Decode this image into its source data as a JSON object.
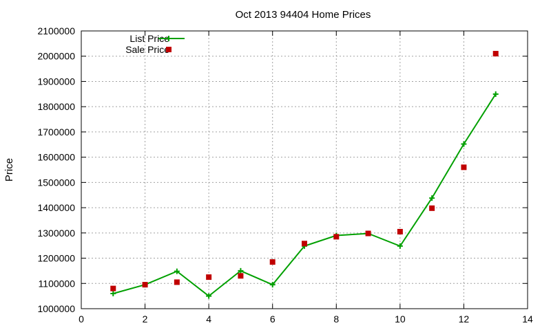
{
  "chart_data": {
    "type": "line",
    "title": "Oct 2013 94404 Home Prices",
    "xlabel": "",
    "ylabel": "Price",
    "xlim": [
      0,
      14
    ],
    "ylim": [
      1000000,
      2100000
    ],
    "xticks": [
      0,
      2,
      4,
      6,
      8,
      10,
      12,
      14
    ],
    "yticks": [
      1000000,
      1100000,
      1200000,
      1300000,
      1400000,
      1500000,
      1600000,
      1700000,
      1800000,
      1900000,
      2000000,
      2100000
    ],
    "grid": true,
    "legend_position": "top-left",
    "series": [
      {
        "name": "List Price",
        "style": "line-with-plus-markers",
        "color": "#00a000",
        "points": [
          [
            1,
            1060000
          ],
          [
            2,
            1095000
          ],
          [
            3,
            1148000
          ],
          [
            4,
            1050000
          ],
          [
            5,
            1150000
          ],
          [
            6,
            1095000
          ],
          [
            7,
            1248000
          ],
          [
            8,
            1290000
          ],
          [
            9,
            1298000
          ],
          [
            10,
            1248000
          ],
          [
            11,
            1438000
          ],
          [
            12,
            1652000
          ],
          [
            13,
            1850000
          ]
        ]
      },
      {
        "name": "Sale Price",
        "style": "square-markers",
        "color": "#c00000",
        "points": [
          [
            1,
            1080000
          ],
          [
            2,
            1095000
          ],
          [
            3,
            1105000
          ],
          [
            4,
            1125000
          ],
          [
            5,
            1130000
          ],
          [
            6,
            1185000
          ],
          [
            7,
            1258000
          ],
          [
            8,
            1285000
          ],
          [
            9,
            1298000
          ],
          [
            10,
            1305000
          ],
          [
            11,
            1398000
          ],
          [
            12,
            1560000
          ],
          [
            13,
            2010000
          ]
        ]
      }
    ]
  }
}
